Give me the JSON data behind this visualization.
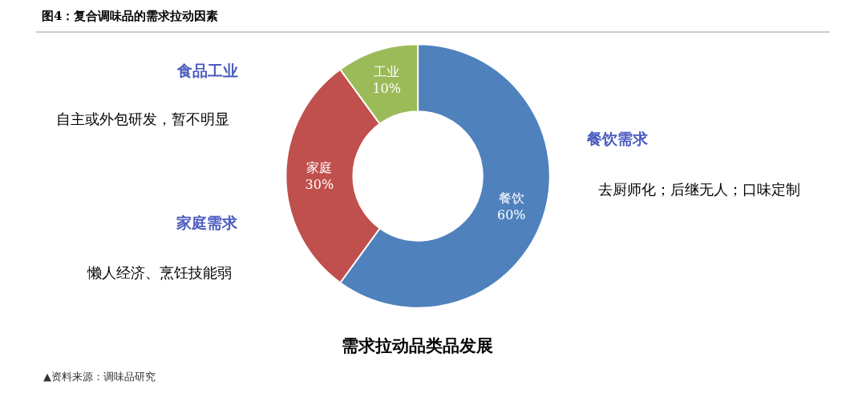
{
  "chart_data": {
    "type": "donut",
    "title": "图4：复合调味品的需求拉动因素",
    "categories": [
      "餐饮",
      "家庭",
      "工业"
    ],
    "values": [
      60,
      30,
      10
    ],
    "value_labels": [
      "60%",
      "30%",
      "10%"
    ],
    "colors": [
      "#4f81bd",
      "#c0504d",
      "#9bbb59"
    ],
    "legend": false,
    "annotations": [
      "食品工业",
      "自主或外包研发，暂不明显",
      "家庭需求",
      "懒人经济、烹饪技能弱",
      "餐饮需求",
      "去厨师化；后继无人；口味定制",
      "需求拉动品类品发展",
      "▲资料来源：调味品研究"
    ]
  }
}
